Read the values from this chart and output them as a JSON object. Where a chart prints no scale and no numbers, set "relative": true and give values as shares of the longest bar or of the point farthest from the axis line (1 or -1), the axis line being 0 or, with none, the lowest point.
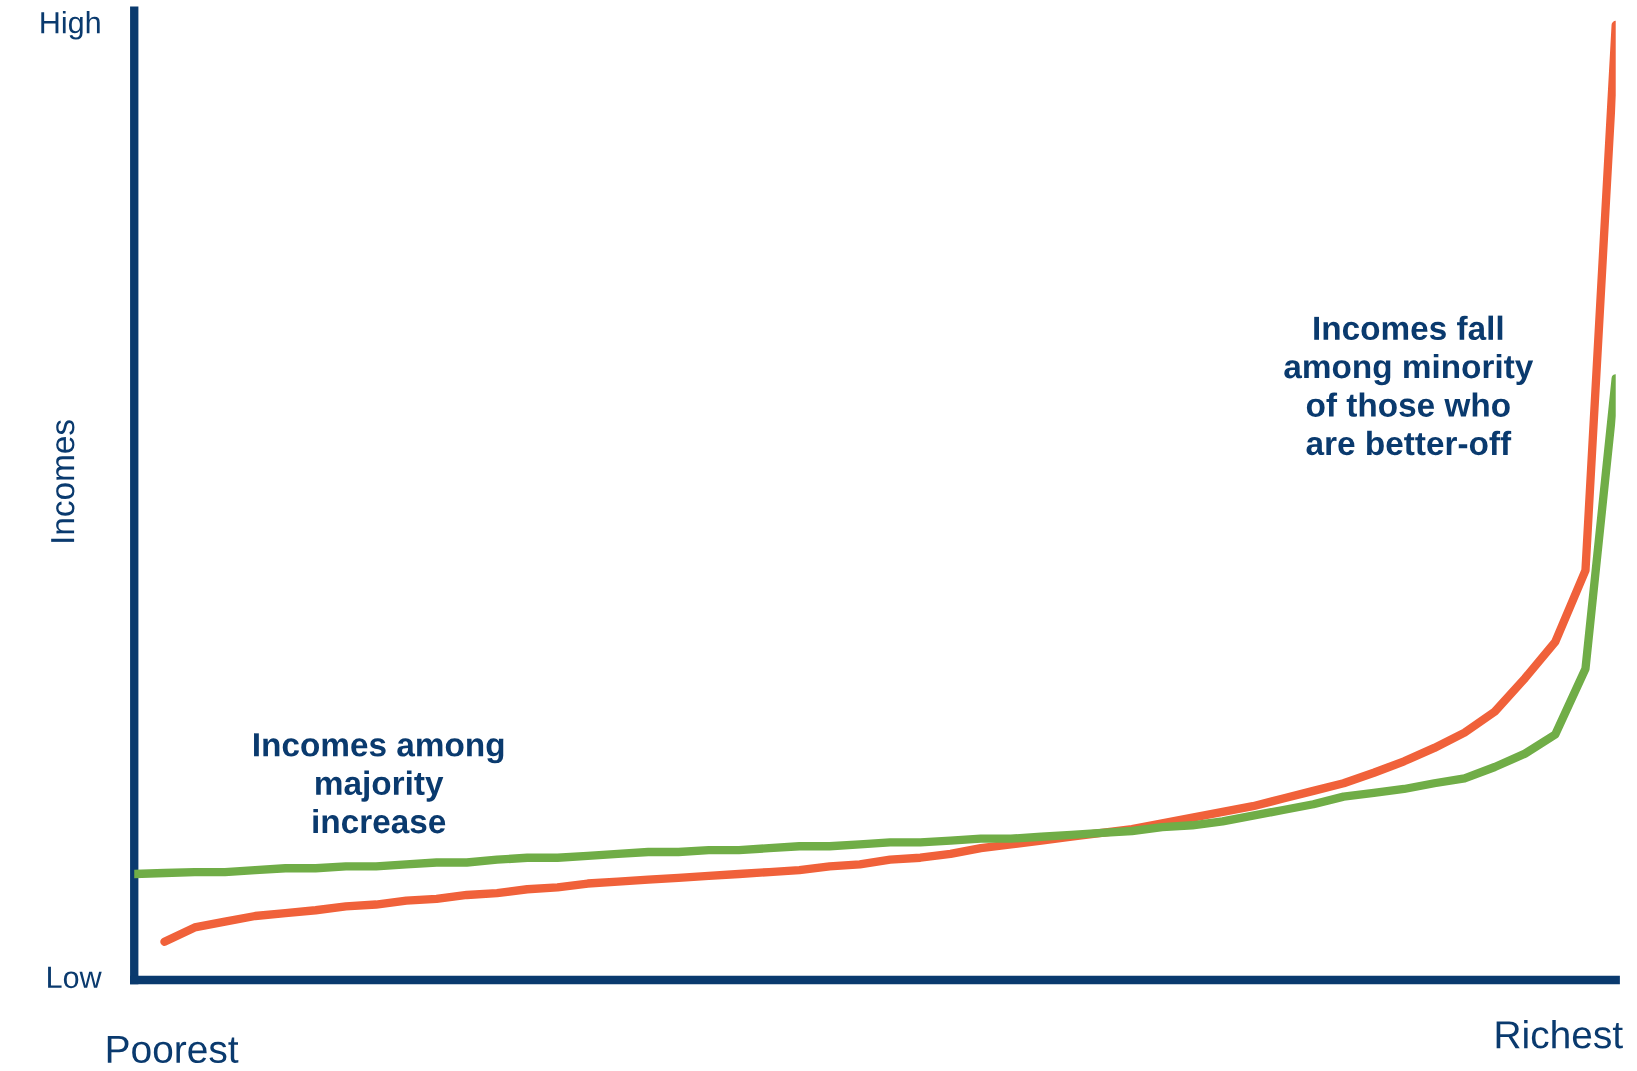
{
  "chart_data": {
    "type": "line",
    "relative": true,
    "ylabel": "Incomes",
    "legend": false,
    "marker": "none",
    "line_style": "solid",
    "categories": [
      null,
      null,
      null,
      null,
      null,
      null,
      null,
      null,
      null,
      null,
      null,
      null,
      null,
      null,
      null,
      null,
      null,
      null,
      null,
      null,
      null,
      null,
      null,
      null,
      null,
      null,
      null,
      null,
      null,
      null,
      null,
      null,
      null,
      null,
      null,
      null,
      null,
      null,
      null,
      null,
      null,
      null,
      null,
      null,
      null,
      null,
      null,
      null,
      null,
      null
    ],
    "series": [
      {
        "color": "#f0613a",
        "values": [
          null,
          0.04,
          0.055,
          0.061,
          0.067,
          0.07,
          0.073,
          0.077,
          0.079,
          0.083,
          0.085,
          0.089,
          0.091,
          0.095,
          0.097,
          0.101,
          0.103,
          0.105,
          0.107,
          0.109,
          0.111,
          0.113,
          0.115,
          0.119,
          0.121,
          0.126,
          0.128,
          0.132,
          0.138,
          0.142,
          0.146,
          0.15,
          0.154,
          0.158,
          0.164,
          0.17,
          0.176,
          0.182,
          0.19,
          0.198,
          0.206,
          0.217,
          0.229,
          0.243,
          0.259,
          0.281,
          0.316,
          0.354,
          0.429,
          1
        ]
      },
      {
        "color": "#70ad47",
        "values": [
          0.111,
          0.112,
          0.113,
          0.113,
          0.115,
          0.117,
          0.117,
          0.119,
          0.119,
          0.121,
          0.123,
          0.123,
          0.126,
          0.128,
          0.128,
          0.13,
          0.132,
          0.134,
          0.134,
          0.136,
          0.136,
          0.138,
          0.14,
          0.14,
          0.142,
          0.144,
          0.144,
          0.146,
          0.148,
          0.148,
          0.15,
          0.152,
          0.154,
          0.156,
          0.16,
          0.162,
          0.166,
          0.172,
          0.178,
          0.184,
          0.192,
          0.196,
          0.2,
          0.206,
          0.211,
          0.223,
          0.237,
          0.257,
          0.326,
          0.63
        ]
      }
    ],
    "annotations": [
      "Incomes among\nmajority\nincrease",
      "Incomes fall\namong minority\nof those who\nare better-off",
      "High",
      "Low",
      "Poorest",
      "Richest"
    ]
  }
}
